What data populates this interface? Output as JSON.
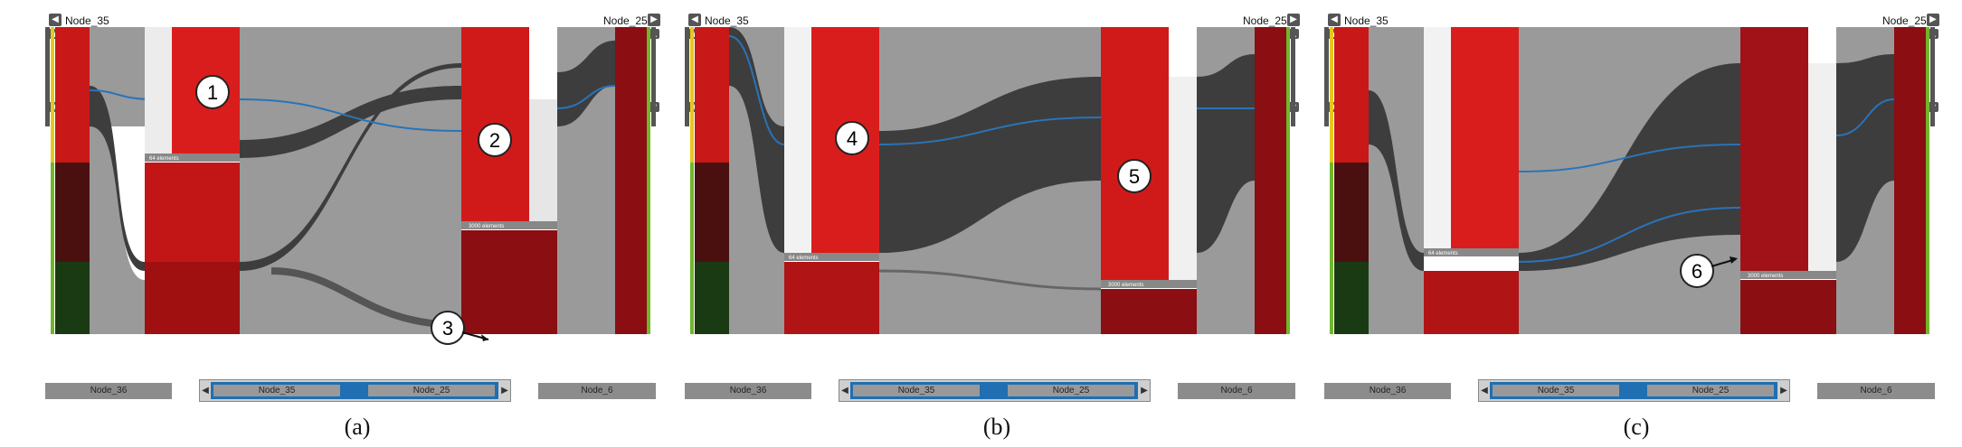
{
  "panels": [
    {
      "caption": "(a)",
      "left_node": "Node_35",
      "right_node": "Node_25",
      "bottom_left": "Node_36",
      "bottom_right": "Node_6",
      "nav_left": "Node_35",
      "nav_right": "Node_25",
      "element_label_1": "64 elements",
      "element_label_2": "3000 elements",
      "callouts": [
        "1",
        "2",
        "3"
      ]
    },
    {
      "caption": "(b)",
      "left_node": "Node_35",
      "right_node": "Node_25",
      "bottom_left": "Node_36",
      "bottom_right": "Node_6",
      "nav_left": "Node_35",
      "nav_right": "Node_25",
      "element_label_1": "64 elements",
      "element_label_2": "3000 elements",
      "callouts": [
        "4",
        "5"
      ]
    },
    {
      "caption": "(c)",
      "left_node": "Node_35",
      "right_node": "Node_25",
      "bottom_left": "Node_36",
      "bottom_right": "Node_6",
      "nav_left": "Node_35",
      "nav_right": "Node_25",
      "element_label_1": "64 elements",
      "element_label_2": "3000 elements",
      "callouts": [
        "6"
      ]
    }
  ],
  "icons": {
    "prev": "◀",
    "next": "▶",
    "up": "▲",
    "down": "▼"
  },
  "colors": {
    "heat_red": "#d91d1d",
    "dark_red": "#7a0d12",
    "ribbon_gray": "#9a9a9a",
    "ribbon_dark": "#3d3d3d",
    "highlight_blue": "#2a73b8",
    "bar_yellow": "#e6c81c",
    "bar_green": "#6fb82a",
    "nav_blue": "#1f6fb2"
  }
}
